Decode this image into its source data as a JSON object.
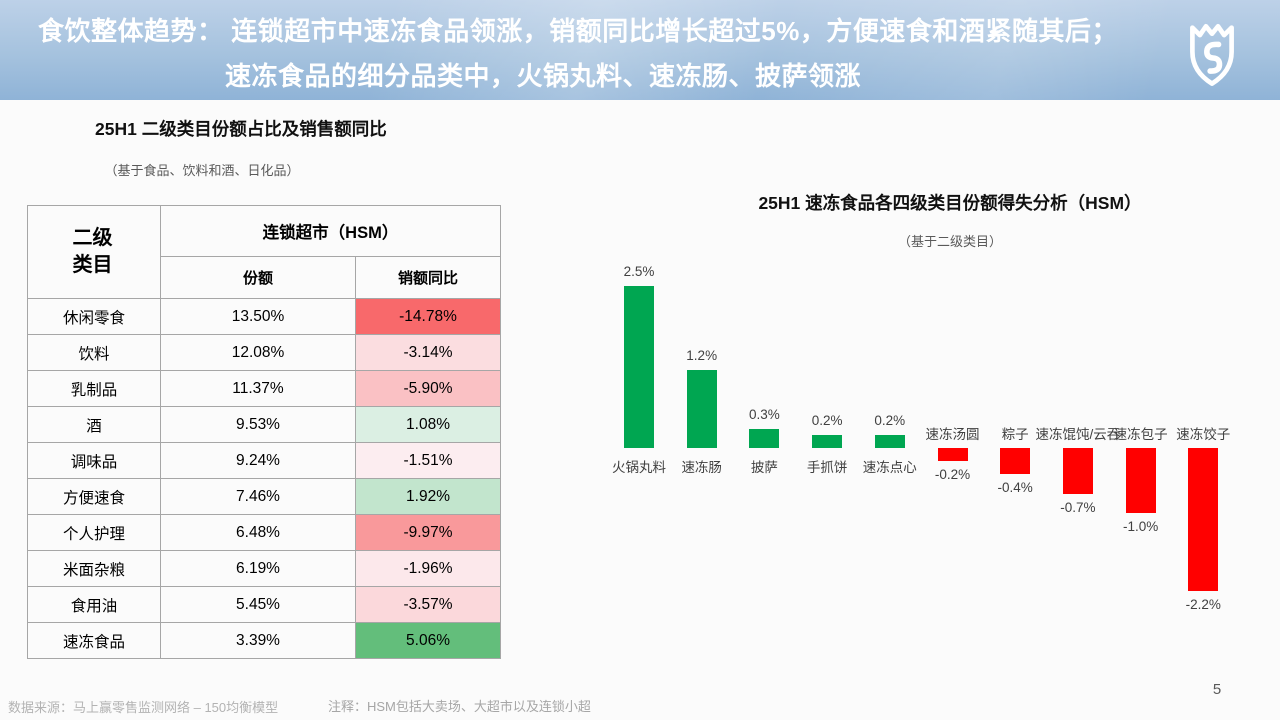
{
  "header": {
    "prefix": "食饮整体趋势：",
    "line1": " 连锁超市中速冻食品领涨，销额同比增长超过5%，方便速食和酒紧随其后；",
    "line2": "速冻食品的细分品类中，火锅丸料、速冻肠、披萨领涨",
    "text_color": "#FFFFFF",
    "band_color_top": "#BDD1E8",
    "band_color_bottom": "#8FB3D7",
    "logo_icon": "shield-crown-logo"
  },
  "chart_data": [
    {
      "type": "table",
      "title": "25H1 二级类目份额占比及销售额同比",
      "subtitle": "（基于食品、饮料和酒、日化品）",
      "row_header": "二级类目",
      "group_header": "连锁超市（HSM）",
      "columns": [
        "份额",
        "销额同比"
      ],
      "rows": [
        {
          "category": "休闲零食",
          "share": "13.50%",
          "yoy": "-14.78%",
          "yoy_bg": "#F8696B"
        },
        {
          "category": "饮料",
          "share": "12.08%",
          "yoy": "-3.14%",
          "yoy_bg": "#FBDDE0"
        },
        {
          "category": "乳制品",
          "share": "11.37%",
          "yoy": "-5.90%",
          "yoy_bg": "#FAC1C4"
        },
        {
          "category": "酒",
          "share": "9.53%",
          "yoy": "1.08%",
          "yoy_bg": "#DBEFE3"
        },
        {
          "category": "调味品",
          "share": "9.24%",
          "yoy": "-1.51%",
          "yoy_bg": "#FCEDF0"
        },
        {
          "category": "方便速食",
          "share": "7.46%",
          "yoy": "1.92%",
          "yoy_bg": "#C2E5CD"
        },
        {
          "category": "个人护理",
          "share": "6.48%",
          "yoy": "-9.97%",
          "yoy_bg": "#F9999B"
        },
        {
          "category": "米面杂粮",
          "share": "6.19%",
          "yoy": "-1.96%",
          "yoy_bg": "#FCE8EB"
        },
        {
          "category": "食用油",
          "share": "5.45%",
          "yoy": "-3.57%",
          "yoy_bg": "#FBD8DB"
        },
        {
          "category": "速冻食品",
          "share": "3.39%",
          "yoy": "5.06%",
          "yoy_bg": "#63BE7B"
        }
      ]
    },
    {
      "type": "bar",
      "title": "25H1 速冻食品各四级类目份额得失分析（HSM）",
      "subtitle": "（基于二级类目）",
      "categories": [
        "火锅丸料",
        "速冻肠",
        "披萨",
        "手抓饼",
        "速冻点心",
        "速冻汤圆",
        "粽子",
        "速冻馄饨/云吞",
        "速冻包子",
        "速冻饺子"
      ],
      "values": [
        2.5,
        1.2,
        0.3,
        0.2,
        0.2,
        -0.2,
        -0.4,
        -0.7,
        -1.0,
        -2.2
      ],
      "labels": [
        "2.5%",
        "1.2%",
        "0.3%",
        "0.2%",
        "0.2%",
        "-0.2%",
        "-0.4%",
        "-0.7%",
        "-1.0%",
        "-2.2%"
      ],
      "positive_color": "#00A651",
      "negative_color": "#FF0000",
      "ylim": [
        -2.4,
        2.9
      ],
      "grid": false,
      "axes_visible": false,
      "legend": "none"
    }
  ],
  "footer": {
    "source": "数据来源：马上赢零售监测网络 – 150均衡模型",
    "note": "注释：HSM包括大卖场、大超市以及连锁小超",
    "page": "5"
  }
}
